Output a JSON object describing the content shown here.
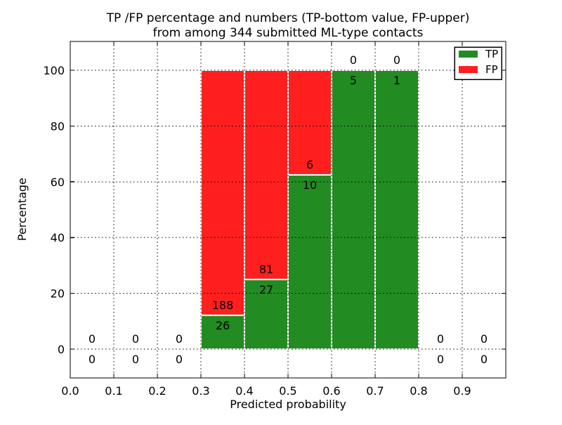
{
  "title": {
    "line1": "TP /FP percentage and numbers (TP-bottom value, FP-upper)",
    "line2": "from among 344 submitted ML-type contacts"
  },
  "axes": {
    "xlabel": "Predicted probability",
    "ylabel": "Percentage",
    "xtick_labels": [
      "0.0",
      "0.1",
      "0.2",
      "0.3",
      "0.4",
      "0.5",
      "0.6",
      "0.7",
      "0.8",
      "0.9"
    ],
    "ytick_labels": [
      "0",
      "20",
      "40",
      "60",
      "80",
      "100"
    ]
  },
  "legend": {
    "items": [
      {
        "label": "TP",
        "color": "#228b22"
      },
      {
        "label": "FP",
        "color": "#ff1f1f"
      }
    ]
  },
  "chart_data": {
    "type": "bar",
    "subtype": "stacked-100-percent",
    "title": "TP /FP percentage and numbers (TP-bottom value, FP-upper) from among 344 submitted ML-type contacts",
    "xlabel": "Predicted probability",
    "ylabel": "Percentage",
    "xlim": [
      0.0,
      1.0
    ],
    "ylim": [
      -10.5,
      110.5
    ],
    "xticks": [
      0.0,
      0.1,
      0.2,
      0.3,
      0.4,
      0.5,
      0.6,
      0.7,
      0.8,
      0.9
    ],
    "yticks": [
      0,
      20,
      40,
      60,
      80,
      100
    ],
    "grid": "dotted",
    "grid_on_top_of_bars": true,
    "legend_position": "upper-right",
    "total_contacts": 344,
    "label_rule": "TP count below segment boundary, FP count above segment boundary",
    "bins": [
      {
        "x0": 0.0,
        "x1": 0.1,
        "tp": 0,
        "fp": 0
      },
      {
        "x0": 0.1,
        "x1": 0.2,
        "tp": 0,
        "fp": 0
      },
      {
        "x0": 0.2,
        "x1": 0.3,
        "tp": 0,
        "fp": 0
      },
      {
        "x0": 0.3,
        "x1": 0.4,
        "tp": 26,
        "fp": 188
      },
      {
        "x0": 0.4,
        "x1": 0.5,
        "tp": 27,
        "fp": 81
      },
      {
        "x0": 0.5,
        "x1": 0.6,
        "tp": 10,
        "fp": 6
      },
      {
        "x0": 0.6,
        "x1": 0.7,
        "tp": 5,
        "fp": 0
      },
      {
        "x0": 0.7,
        "x1": 0.8,
        "tp": 1,
        "fp": 0
      },
      {
        "x0": 0.8,
        "x1": 0.9,
        "tp": 0,
        "fp": 0
      },
      {
        "x0": 0.9,
        "x1": 1.0,
        "tp": 0,
        "fp": 0
      }
    ],
    "series": [
      {
        "name": "TP",
        "color": "#228b22",
        "counts": [
          0,
          0,
          0,
          26,
          27,
          10,
          5,
          1,
          0,
          0
        ]
      },
      {
        "name": "FP",
        "color": "#ff1f1f",
        "counts": [
          0,
          0,
          0,
          188,
          81,
          6,
          0,
          0,
          0,
          0
        ]
      }
    ],
    "tp_percent_of_stack": [
      null,
      null,
      null,
      12.15,
      25.0,
      62.5,
      100.0,
      100.0,
      null,
      null
    ]
  }
}
